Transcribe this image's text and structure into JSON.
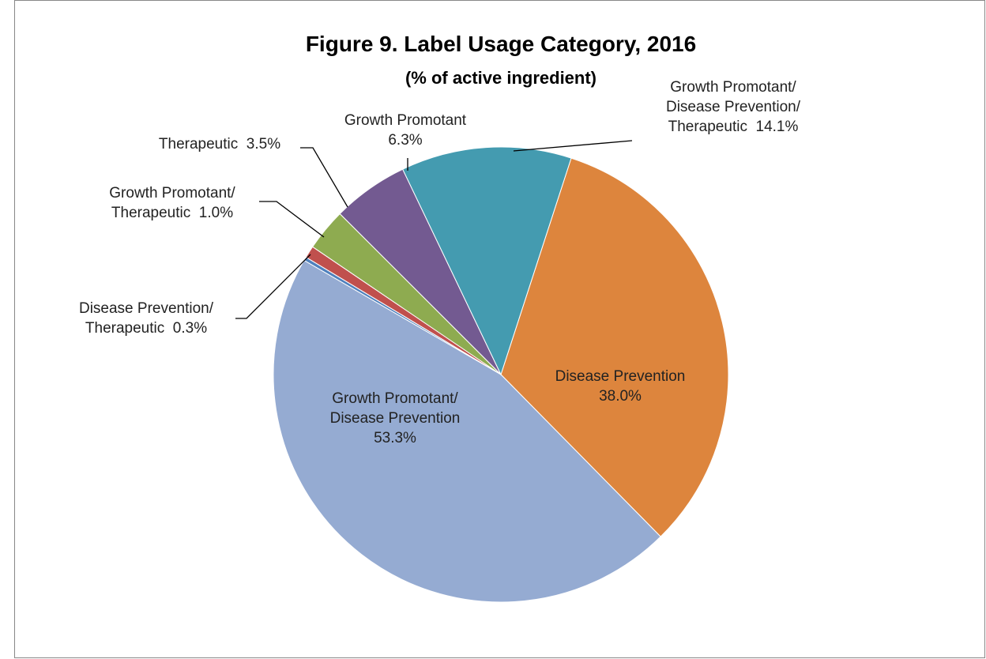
{
  "chart_data": {
    "type": "pie",
    "title": "Figure 9. Label Usage Category, 2016",
    "subtitle": "(% of active ingredient)",
    "categories": [
      "Disease Prevention",
      "Growth Promotant/ Disease Prevention",
      "Disease Prevention/ Therapeutic",
      "Growth Promotant/ Therapeutic",
      "Therapeutic",
      "Growth Promotant",
      "Growth Promotant/ Disease Prevention/ Therapeutic"
    ],
    "values": [
      38.0,
      53.3,
      0.3,
      1.0,
      3.5,
      6.3,
      14.1
    ],
    "value_labels": [
      "38.0%",
      "53.3%",
      "0.3%",
      "1.0%",
      "3.5%",
      "6.3%",
      "14.1%"
    ],
    "colors": [
      "#dd853d",
      "#95abd2",
      "#4f81bd",
      "#c0504d",
      "#8eab50",
      "#735a91",
      "#449bb0"
    ]
  }
}
